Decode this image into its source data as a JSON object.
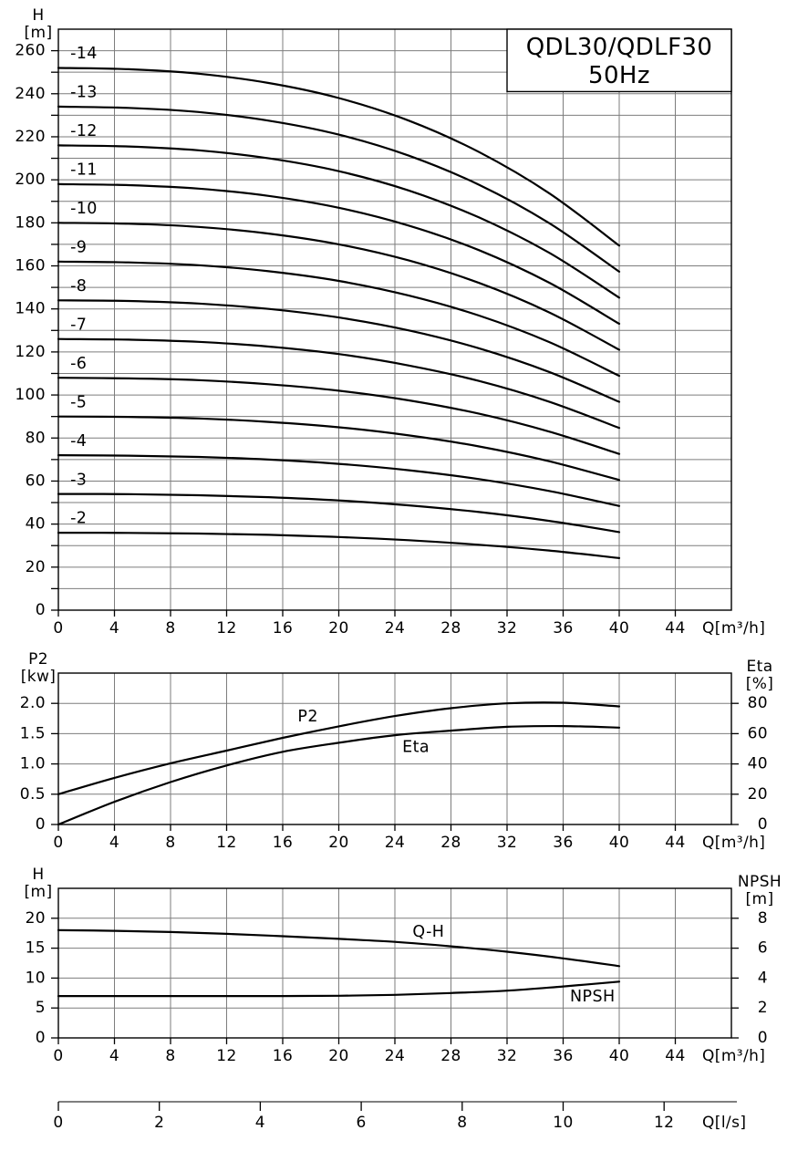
{
  "title_box": {
    "line1": "QDL30/QDLF30",
    "line2": "50Hz"
  },
  "colors": {
    "background": "#ffffff",
    "grid": "#7d7d7d",
    "border": "#000000",
    "curve": "#000000",
    "text": "#000000",
    "tick": "#000000"
  },
  "chart_data": [
    {
      "id": "head",
      "type": "line",
      "title": "QDL30/QDLF30 50Hz",
      "xlabel": "Q[m³/h]",
      "header_left": [
        "H",
        "[m]"
      ],
      "xlim": [
        0,
        48
      ],
      "ylim_left": [
        0,
        270
      ],
      "grid": true,
      "x_ticks": [
        0,
        4,
        8,
        12,
        16,
        20,
        24,
        28,
        32,
        36,
        40,
        44
      ],
      "y_grid_step": 10,
      "left_tick_values": [
        0,
        10,
        20,
        30,
        40,
        50,
        60,
        70,
        80,
        90,
        100,
        110,
        120,
        130,
        140,
        150,
        160,
        170,
        180,
        190,
        200,
        210,
        220,
        230,
        240,
        250,
        260
      ],
      "left_tick_labels": {
        "values": [
          0,
          20,
          40,
          60,
          80,
          100,
          120,
          140,
          160,
          180,
          200,
          220,
          240,
          260
        ],
        "texts": [
          "0",
          "20",
          "40",
          "60",
          "80",
          "100",
          "120",
          "140",
          "160",
          "180",
          "200",
          "220",
          "240",
          "260"
        ]
      },
      "title_box": {
        "q0": 32,
        "v0": 241,
        "line1": "QDL30/QDLF30",
        "line2": "50Hz"
      },
      "series": [
        {
          "name": "-14",
          "axis": "left",
          "x": [
            0,
            5,
            10,
            15,
            20,
            25,
            30,
            35,
            40
          ],
          "y": [
            252,
            251.4,
            249.3,
            245,
            238,
            227.5,
            212.9,
            193.8,
            169.4
          ]
        },
        {
          "name": "-13",
          "axis": "left",
          "x": [
            0,
            5,
            10,
            15,
            20,
            25,
            30,
            35,
            40
          ],
          "y": [
            234,
            233.4,
            231.5,
            227.5,
            221,
            211.2,
            197.7,
            179.9,
            157.3
          ]
        },
        {
          "name": "-12",
          "axis": "left",
          "x": [
            0,
            5,
            10,
            15,
            20,
            25,
            30,
            35,
            40
          ],
          "y": [
            216,
            215.5,
            213.7,
            210,
            204,
            195,
            182.5,
            166.1,
            145.2
          ]
        },
        {
          "name": "-11",
          "axis": "left",
          "x": [
            0,
            5,
            10,
            15,
            20,
            25,
            30,
            35,
            40
          ],
          "y": [
            198,
            197.5,
            195.9,
            192.5,
            187,
            178.7,
            167.3,
            152.2,
            133.1
          ]
        },
        {
          "name": "-10",
          "axis": "left",
          "x": [
            0,
            5,
            10,
            15,
            20,
            25,
            30,
            35,
            40
          ],
          "y": [
            180,
            179.6,
            178.1,
            175,
            170,
            162.5,
            152.1,
            138.4,
            121
          ]
        },
        {
          "name": "-9",
          "axis": "left",
          "x": [
            0,
            5,
            10,
            15,
            20,
            25,
            30,
            35,
            40
          ],
          "y": [
            162,
            161.6,
            160.3,
            157.5,
            153,
            146.2,
            136.9,
            124.6,
            108.9
          ]
        },
        {
          "name": "-8",
          "axis": "left",
          "x": [
            0,
            5,
            10,
            15,
            20,
            25,
            30,
            35,
            40
          ],
          "y": [
            144,
            143.7,
            142.5,
            140,
            136,
            130,
            121.7,
            110.7,
            96.8
          ]
        },
        {
          "name": "-7",
          "axis": "left",
          "x": [
            0,
            5,
            10,
            15,
            20,
            25,
            30,
            35,
            40
          ],
          "y": [
            126,
            125.7,
            124.7,
            122.5,
            119,
            113.7,
            106.5,
            96.9,
            84.7
          ]
        },
        {
          "name": "-6",
          "axis": "left",
          "x": [
            0,
            5,
            10,
            15,
            20,
            25,
            30,
            35,
            40
          ],
          "y": [
            108,
            107.7,
            106.9,
            105,
            102,
            97.5,
            91.3,
            83,
            72.6
          ]
        },
        {
          "name": "-5",
          "axis": "left",
          "x": [
            0,
            5,
            10,
            15,
            20,
            25,
            30,
            35,
            40
          ],
          "y": [
            90,
            89.8,
            89.1,
            87.5,
            85,
            81.2,
            76.1,
            69.2,
            60.5
          ]
        },
        {
          "name": "-4",
          "axis": "left",
          "x": [
            0,
            5,
            10,
            15,
            20,
            25,
            30,
            35,
            40
          ],
          "y": [
            72,
            71.8,
            71.2,
            70,
            68,
            65,
            60.9,
            55.4,
            48.4
          ]
        },
        {
          "name": "-3",
          "axis": "left",
          "x": [
            0,
            5,
            10,
            15,
            20,
            25,
            30,
            35,
            40
          ],
          "y": [
            54,
            53.9,
            53.4,
            52.5,
            51,
            48.7,
            45.6,
            41.5,
            36.3
          ]
        },
        {
          "name": "-2",
          "axis": "left",
          "x": [
            0,
            5,
            10,
            15,
            20,
            25,
            30,
            35,
            40
          ],
          "y": [
            36,
            35.9,
            35.6,
            35,
            34,
            32.5,
            30.4,
            27.7,
            24.2
          ]
        }
      ],
      "curve_labels": [
        {
          "text": "-14",
          "q": 0.85,
          "v": 258.5,
          "anchor": "start"
        },
        {
          "text": "-13",
          "q": 0.85,
          "v": 240.5,
          "anchor": "start"
        },
        {
          "text": "-12",
          "q": 0.85,
          "v": 222.5,
          "anchor": "start"
        },
        {
          "text": "-11",
          "q": 0.85,
          "v": 204.5,
          "anchor": "start"
        },
        {
          "text": "-10",
          "q": 0.85,
          "v": 186.5,
          "anchor": "start"
        },
        {
          "text": "-9",
          "q": 0.85,
          "v": 168.5,
          "anchor": "start"
        },
        {
          "text": "-8",
          "q": 0.85,
          "v": 150.5,
          "anchor": "start"
        },
        {
          "text": "-7",
          "q": 0.85,
          "v": 132.5,
          "anchor": "start"
        },
        {
          "text": "-6",
          "q": 0.85,
          "v": 114.5,
          "anchor": "start"
        },
        {
          "text": "-5",
          "q": 0.85,
          "v": 96.5,
          "anchor": "start"
        },
        {
          "text": "-4",
          "q": 0.85,
          "v": 78.5,
          "anchor": "start"
        },
        {
          "text": "-3",
          "q": 0.85,
          "v": 60.5,
          "anchor": "start"
        },
        {
          "text": "-2",
          "q": 0.85,
          "v": 42.5,
          "anchor": "start"
        }
      ]
    },
    {
      "id": "power",
      "type": "line",
      "xlabel": "Q[m³/h]",
      "header_left": [
        "P2",
        "[kw]"
      ],
      "header_right": [
        "Eta",
        "[%]"
      ],
      "xlim": [
        0,
        48
      ],
      "ylim_left": [
        0,
        2.5
      ],
      "ylim_right": [
        0,
        100
      ],
      "grid": true,
      "x_ticks": [
        0,
        4,
        8,
        12,
        16,
        20,
        24,
        28,
        32,
        36,
        40,
        44
      ],
      "y_grid_step": 0.5,
      "left_tick_values": [
        0,
        0.5,
        1.0,
        1.5,
        2.0
      ],
      "left_tick_labels": {
        "values": [
          0,
          0.5,
          1.0,
          1.5,
          2.0
        ],
        "texts": [
          "0",
          "0.5",
          "1.0",
          "1.5",
          "2.0"
        ]
      },
      "right_tick_values": [
        0,
        20,
        40,
        60,
        80
      ],
      "right_tick_labels": {
        "values": [
          0,
          20,
          40,
          60,
          80
        ],
        "texts": [
          "0",
          "20",
          "40",
          "60",
          "80"
        ]
      },
      "series": [
        {
          "name": "P2",
          "axis": "left",
          "x": [
            0,
            4,
            8,
            12,
            16,
            20,
            24,
            28,
            32,
            36,
            40
          ],
          "y": [
            0.5,
            0.77,
            1.01,
            1.22,
            1.43,
            1.62,
            1.79,
            1.92,
            2.0,
            2.01,
            1.95
          ]
        },
        {
          "name": "Eta",
          "axis": "right",
          "x": [
            0,
            4,
            8,
            12,
            16,
            20,
            24,
            28,
            32,
            36,
            40
          ],
          "y": [
            0,
            15,
            28,
            39,
            48,
            54,
            59,
            62,
            64.5,
            65,
            64
          ]
        }
      ],
      "curve_labels": [
        {
          "text": "P2",
          "q": 17.8,
          "v": 1.78,
          "anchor": "middle"
        },
        {
          "text": "Eta",
          "q": 25.5,
          "v": 1.27,
          "anchor": "middle"
        }
      ]
    },
    {
      "id": "qh",
      "type": "line",
      "xlabel": "Q[m³/h]",
      "header_left": [
        "H",
        "[m]"
      ],
      "header_right": [
        "NPSH",
        "[m]"
      ],
      "xlim": [
        0,
        48
      ],
      "ylim_left": [
        0,
        25
      ],
      "ylim_right": [
        0,
        10
      ],
      "grid": true,
      "x_ticks": [
        0,
        4,
        8,
        12,
        16,
        20,
        24,
        28,
        32,
        36,
        40,
        44
      ],
      "y_grid_step": 5,
      "left_tick_values": [
        0,
        5,
        10,
        15,
        20
      ],
      "left_tick_labels": {
        "values": [
          0,
          5,
          10,
          15,
          20
        ],
        "texts": [
          "0",
          "5",
          "10",
          "15",
          "20"
        ]
      },
      "right_tick_values": [
        0,
        2,
        4,
        6,
        8
      ],
      "right_tick_labels": {
        "values": [
          0,
          2,
          4,
          6,
          8
        ],
        "texts": [
          "0",
          "2",
          "4",
          "6",
          "8"
        ]
      },
      "series": [
        {
          "name": "Q-H",
          "axis": "left",
          "x": [
            0,
            4,
            8,
            12,
            16,
            20,
            24,
            28,
            32,
            36,
            40
          ],
          "y": [
            18,
            17.9,
            17.7,
            17.4,
            17.0,
            16.55,
            16.05,
            15.3,
            14.4,
            13.3,
            12.0
          ]
        },
        {
          "name": "NPSH",
          "axis": "right",
          "x": [
            0,
            4,
            8,
            12,
            16,
            20,
            24,
            28,
            32,
            36,
            40
          ],
          "y": [
            2.8,
            2.8,
            2.8,
            2.8,
            2.8,
            2.82,
            2.88,
            3.0,
            3.16,
            3.44,
            3.76
          ]
        }
      ],
      "curve_labels": [
        {
          "text": "Q-H",
          "q": 26.4,
          "v": 17.7,
          "anchor": "middle"
        },
        {
          "text": "NPSH",
          "q": 38.1,
          "v": 6.85,
          "anchor": "middle"
        }
      ]
    }
  ],
  "lps_axis": {
    "label": "Q[l/s]",
    "tick_values": [
      0,
      2,
      4,
      6,
      8,
      10,
      12
    ],
    "tick_texts": [
      "0",
      "2",
      "4",
      "6",
      "8",
      "10",
      "12"
    ],
    "m3h_per_lps": 3.6
  }
}
